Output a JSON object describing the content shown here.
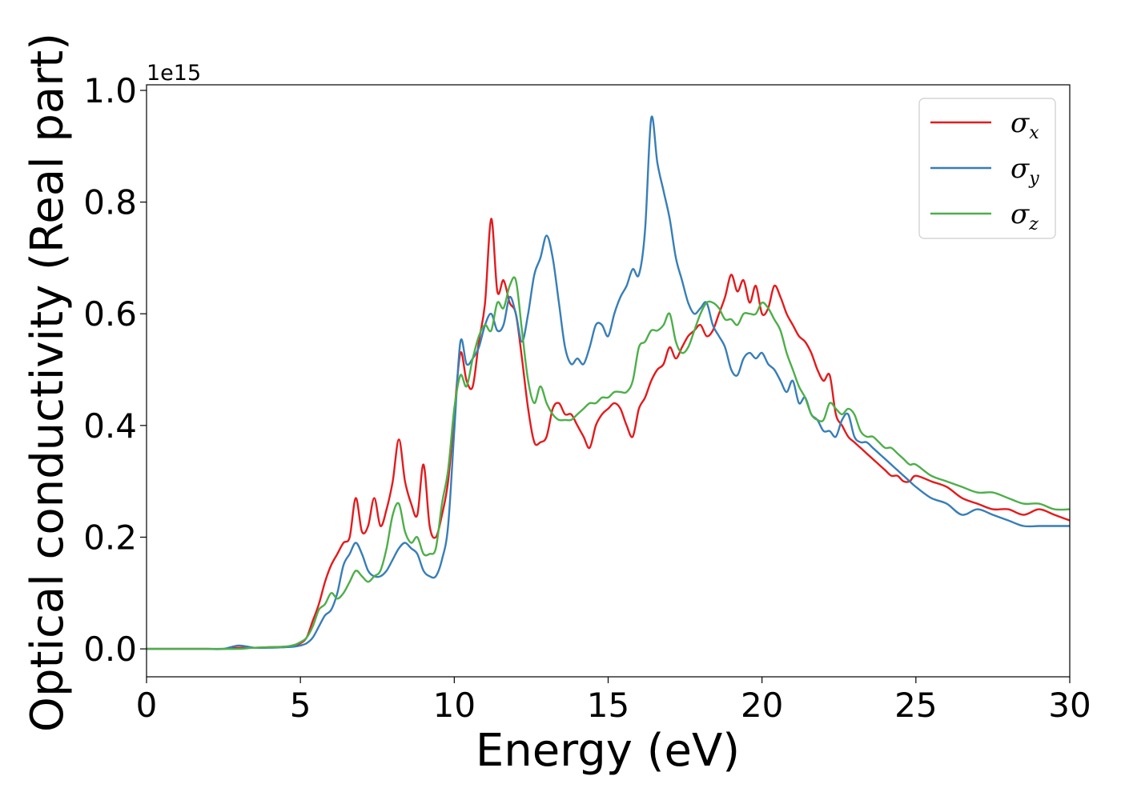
{
  "chart_data": {
    "type": "line",
    "xlabel": "Energy (eV)",
    "ylabel": "Optical conductivity (Real part)",
    "y_offset_label": "1e15",
    "xlim": [
      0,
      30
    ],
    "ylim": [
      -0.05,
      1.01
    ],
    "x_ticks": [
      0,
      5,
      10,
      15,
      20,
      25,
      30
    ],
    "x_tick_labels": [
      "0",
      "5",
      "10",
      "15",
      "20",
      "25",
      "30"
    ],
    "y_ticks": [
      0.0,
      0.2,
      0.4,
      0.6,
      0.8,
      1.0
    ],
    "y_tick_labels": [
      "0.0",
      "0.2",
      "0.4",
      "0.6",
      "0.8",
      "1.0"
    ],
    "grid": false,
    "legend_position": "top-right",
    "x": [
      0.0,
      0.5,
      1.0,
      1.5,
      2.0,
      2.5,
      3.0,
      3.5,
      4.0,
      4.5,
      4.8,
      5.0,
      5.2,
      5.4,
      5.6,
      5.8,
      6.0,
      6.2,
      6.4,
      6.6,
      6.8,
      7.0,
      7.2,
      7.4,
      7.6,
      7.8,
      8.0,
      8.2,
      8.4,
      8.6,
      8.8,
      9.0,
      9.2,
      9.4,
      9.6,
      9.8,
      10.0,
      10.2,
      10.4,
      10.6,
      10.8,
      11.0,
      11.2,
      11.4,
      11.6,
      11.8,
      12.0,
      12.2,
      12.4,
      12.6,
      12.8,
      13.0,
      13.2,
      13.4,
      13.6,
      13.8,
      14.0,
      14.2,
      14.4,
      14.6,
      14.8,
      15.0,
      15.2,
      15.4,
      15.6,
      15.8,
      16.0,
      16.2,
      16.4,
      16.6,
      16.8,
      17.0,
      17.2,
      17.4,
      17.6,
      17.8,
      18.0,
      18.2,
      18.4,
      18.6,
      18.8,
      19.0,
      19.2,
      19.4,
      19.6,
      19.8,
      20.0,
      20.2,
      20.4,
      20.6,
      20.8,
      21.0,
      21.2,
      21.4,
      21.6,
      21.8,
      22.0,
      22.2,
      22.4,
      22.6,
      22.8,
      23.0,
      23.2,
      23.4,
      23.6,
      23.8,
      24.0,
      24.2,
      24.4,
      24.6,
      24.8,
      25.0,
      25.5,
      26.0,
      26.5,
      27.0,
      27.5,
      28.0,
      28.5,
      29.0,
      29.5,
      30.0
    ],
    "series": [
      {
        "name": "σx",
        "color": "#e41a1c",
        "values": [
          0.0,
          0.0,
          0.0,
          0.0,
          0.0,
          0.0,
          0.002,
          0.002,
          0.003,
          0.004,
          0.006,
          0.01,
          0.02,
          0.05,
          0.08,
          0.12,
          0.15,
          0.17,
          0.19,
          0.2,
          0.27,
          0.21,
          0.22,
          0.27,
          0.22,
          0.25,
          0.3,
          0.375,
          0.3,
          0.26,
          0.24,
          0.33,
          0.22,
          0.2,
          0.24,
          0.3,
          0.42,
          0.53,
          0.48,
          0.47,
          0.55,
          0.62,
          0.77,
          0.64,
          0.66,
          0.62,
          0.6,
          0.52,
          0.43,
          0.37,
          0.37,
          0.38,
          0.43,
          0.44,
          0.42,
          0.42,
          0.4,
          0.38,
          0.36,
          0.4,
          0.42,
          0.43,
          0.44,
          0.43,
          0.4,
          0.38,
          0.43,
          0.45,
          0.48,
          0.5,
          0.51,
          0.54,
          0.52,
          0.54,
          0.56,
          0.57,
          0.58,
          0.56,
          0.57,
          0.6,
          0.63,
          0.67,
          0.64,
          0.66,
          0.62,
          0.65,
          0.6,
          0.61,
          0.65,
          0.63,
          0.6,
          0.58,
          0.56,
          0.55,
          0.53,
          0.5,
          0.48,
          0.49,
          0.42,
          0.4,
          0.38,
          0.37,
          0.36,
          0.35,
          0.34,
          0.33,
          0.32,
          0.31,
          0.31,
          0.3,
          0.3,
          0.31,
          0.3,
          0.29,
          0.27,
          0.26,
          0.25,
          0.25,
          0.24,
          0.25,
          0.24,
          0.23
        ]
      },
      {
        "name": "σy",
        "color": "#377eb8",
        "values": [
          0.0,
          0.0,
          0.0,
          0.0,
          0.0,
          0.0,
          0.006,
          0.002,
          0.002,
          0.003,
          0.004,
          0.006,
          0.01,
          0.02,
          0.04,
          0.06,
          0.07,
          0.1,
          0.15,
          0.17,
          0.19,
          0.17,
          0.14,
          0.13,
          0.13,
          0.14,
          0.16,
          0.18,
          0.19,
          0.18,
          0.17,
          0.14,
          0.13,
          0.13,
          0.16,
          0.22,
          0.39,
          0.55,
          0.51,
          0.52,
          0.54,
          0.58,
          0.6,
          0.57,
          0.58,
          0.63,
          0.6,
          0.55,
          0.6,
          0.67,
          0.7,
          0.74,
          0.7,
          0.62,
          0.54,
          0.51,
          0.52,
          0.51,
          0.54,
          0.58,
          0.58,
          0.56,
          0.6,
          0.63,
          0.65,
          0.68,
          0.67,
          0.75,
          0.95,
          0.87,
          0.82,
          0.77,
          0.7,
          0.66,
          0.62,
          0.6,
          0.61,
          0.62,
          0.58,
          0.56,
          0.54,
          0.5,
          0.49,
          0.52,
          0.53,
          0.52,
          0.53,
          0.51,
          0.5,
          0.48,
          0.46,
          0.48,
          0.44,
          0.45,
          0.42,
          0.41,
          0.39,
          0.39,
          0.38,
          0.41,
          0.42,
          0.38,
          0.37,
          0.37,
          0.36,
          0.35,
          0.34,
          0.33,
          0.32,
          0.31,
          0.3,
          0.29,
          0.27,
          0.26,
          0.24,
          0.25,
          0.24,
          0.23,
          0.22,
          0.22,
          0.22,
          0.22
        ]
      },
      {
        "name": "σz",
        "color": "#4daf4a",
        "values": [
          0.0,
          0.0,
          0.0,
          0.0,
          0.0,
          0.0,
          0.0,
          0.002,
          0.003,
          0.004,
          0.007,
          0.012,
          0.02,
          0.04,
          0.07,
          0.08,
          0.1,
          0.09,
          0.1,
          0.12,
          0.14,
          0.13,
          0.12,
          0.13,
          0.14,
          0.18,
          0.24,
          0.26,
          0.21,
          0.19,
          0.2,
          0.17,
          0.17,
          0.18,
          0.26,
          0.32,
          0.43,
          0.49,
          0.47,
          0.52,
          0.56,
          0.58,
          0.57,
          0.62,
          0.61,
          0.65,
          0.66,
          0.57,
          0.48,
          0.44,
          0.47,
          0.44,
          0.42,
          0.41,
          0.41,
          0.41,
          0.42,
          0.43,
          0.44,
          0.44,
          0.45,
          0.45,
          0.46,
          0.46,
          0.46,
          0.48,
          0.54,
          0.55,
          0.57,
          0.57,
          0.58,
          0.6,
          0.55,
          0.53,
          0.54,
          0.57,
          0.6,
          0.62,
          0.62,
          0.61,
          0.59,
          0.59,
          0.58,
          0.6,
          0.6,
          0.6,
          0.62,
          0.61,
          0.59,
          0.57,
          0.53,
          0.5,
          0.47,
          0.45,
          0.42,
          0.41,
          0.41,
          0.44,
          0.43,
          0.42,
          0.43,
          0.42,
          0.39,
          0.38,
          0.38,
          0.37,
          0.36,
          0.36,
          0.35,
          0.34,
          0.33,
          0.33,
          0.31,
          0.3,
          0.29,
          0.28,
          0.28,
          0.27,
          0.26,
          0.26,
          0.25,
          0.25
        ]
      }
    ]
  }
}
